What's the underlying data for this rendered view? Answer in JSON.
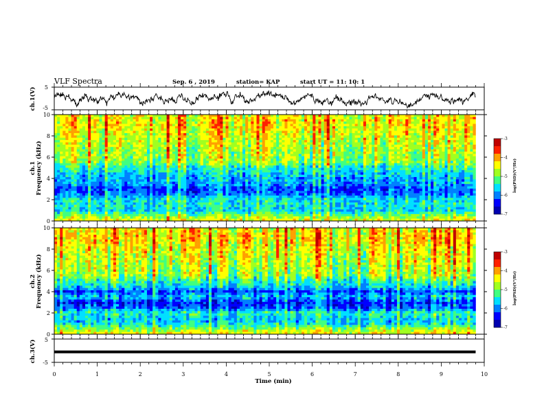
{
  "header": {
    "title": "VLF Spectra",
    "date": "Sep. 6 , 2019",
    "station": "station= KAP",
    "start_time": "start UT = 11: 10: 1"
  },
  "colors": {
    "colormap": [
      "#0000b0",
      "#0000ff",
      "#0080ff",
      "#00e0ff",
      "#40ff80",
      "#a0ff20",
      "#ffff00",
      "#ffa000",
      "#ff2000",
      "#c00000"
    ],
    "trace": "#000000"
  },
  "chart_data": [
    {
      "type": "line",
      "name": "ch1-voltage",
      "ylabel": "ch.1(V)",
      "ylim": [
        -5,
        5
      ],
      "yticks": [
        "5",
        "-5"
      ],
      "x_range_min": [
        0,
        9.8
      ],
      "mean_value": 0,
      "approx_amplitude": 2
    },
    {
      "type": "heatmap",
      "name": "ch1-spectrogram",
      "ylabel_line1": "ch.1",
      "ylabel_line2": "Frequency (kHz)",
      "ylim": [
        0,
        10
      ],
      "yticks": [
        "0",
        "2",
        "4",
        "6",
        "8",
        "10"
      ],
      "x_range_min": [
        0,
        9.8
      ],
      "colorbar": {
        "label": "log(PSD)(V²/Hz)",
        "range": [
          -7,
          -3
        ],
        "ticks": [
          "-3",
          "-4",
          "-5",
          "-6",
          "-7"
        ]
      },
      "band_profile_khz": [
        {
          "f": 0.1,
          "v": -4.5
        },
        {
          "f": 0.4,
          "v": -4.8
        },
        {
          "f": 1.0,
          "v": -5.6
        },
        {
          "f": 1.5,
          "v": -5.5
        },
        {
          "f": 2.0,
          "v": -5.5
        },
        {
          "f": 2.5,
          "v": -6.0
        },
        {
          "f": 3.0,
          "v": -6.2
        },
        {
          "f": 3.5,
          "v": -5.8
        },
        {
          "f": 4.0,
          "v": -5.8
        },
        {
          "f": 4.5,
          "v": -5.6
        },
        {
          "f": 5.0,
          "v": -5.4
        },
        {
          "f": 5.5,
          "v": -4.9
        },
        {
          "f": 6.0,
          "v": -4.8
        },
        {
          "f": 7.0,
          "v": -4.7
        },
        {
          "f": 8.0,
          "v": -4.5
        },
        {
          "f": 9.0,
          "v": -4.3
        },
        {
          "f": 10.0,
          "v": -4.4
        }
      ]
    },
    {
      "type": "heatmap",
      "name": "ch2-spectrogram",
      "ylabel_line1": "ch.2",
      "ylabel_line2": "Frequency (kHz)",
      "ylim": [
        0,
        10
      ],
      "yticks": [
        "0",
        "2",
        "4",
        "6",
        "8",
        "10"
      ],
      "x_range_min": [
        0,
        9.8
      ],
      "colorbar": {
        "label": "log(PSD)(V²/Hz)",
        "range": [
          -7,
          -3
        ],
        "ticks": [
          "-3",
          "-4",
          "-5",
          "-6",
          "-7"
        ]
      },
      "band_profile_khz": [
        {
          "f": 0.1,
          "v": -4.5
        },
        {
          "f": 0.4,
          "v": -4.8
        },
        {
          "f": 1.0,
          "v": -5.6
        },
        {
          "f": 1.5,
          "v": -5.7
        },
        {
          "f": 2.0,
          "v": -5.4
        },
        {
          "f": 2.5,
          "v": -6.2
        },
        {
          "f": 3.0,
          "v": -6.4
        },
        {
          "f": 3.5,
          "v": -5.7
        },
        {
          "f": 4.0,
          "v": -6.2
        },
        {
          "f": 4.5,
          "v": -5.6
        },
        {
          "f": 5.0,
          "v": -5.4
        },
        {
          "f": 5.5,
          "v": -4.9
        },
        {
          "f": 6.0,
          "v": -4.8
        },
        {
          "f": 7.0,
          "v": -4.7
        },
        {
          "f": 8.0,
          "v": -4.5
        },
        {
          "f": 9.0,
          "v": -4.3
        },
        {
          "f": 10.0,
          "v": -4.4
        }
      ]
    },
    {
      "type": "line",
      "name": "ch3-voltage",
      "ylabel": "ch.3(V)",
      "ylim": [
        -5,
        5
      ],
      "yticks": [
        "5",
        "-5"
      ],
      "x_range_min": [
        0,
        9.8
      ],
      "mean_value": -0.5,
      "approx_amplitude": 0
    }
  ],
  "xaxis": {
    "label": "Time (min)",
    "ticks": [
      "0",
      "1",
      "2",
      "3",
      "4",
      "5",
      "6",
      "7",
      "8",
      "9",
      "10"
    ],
    "range": [
      0,
      10
    ]
  }
}
